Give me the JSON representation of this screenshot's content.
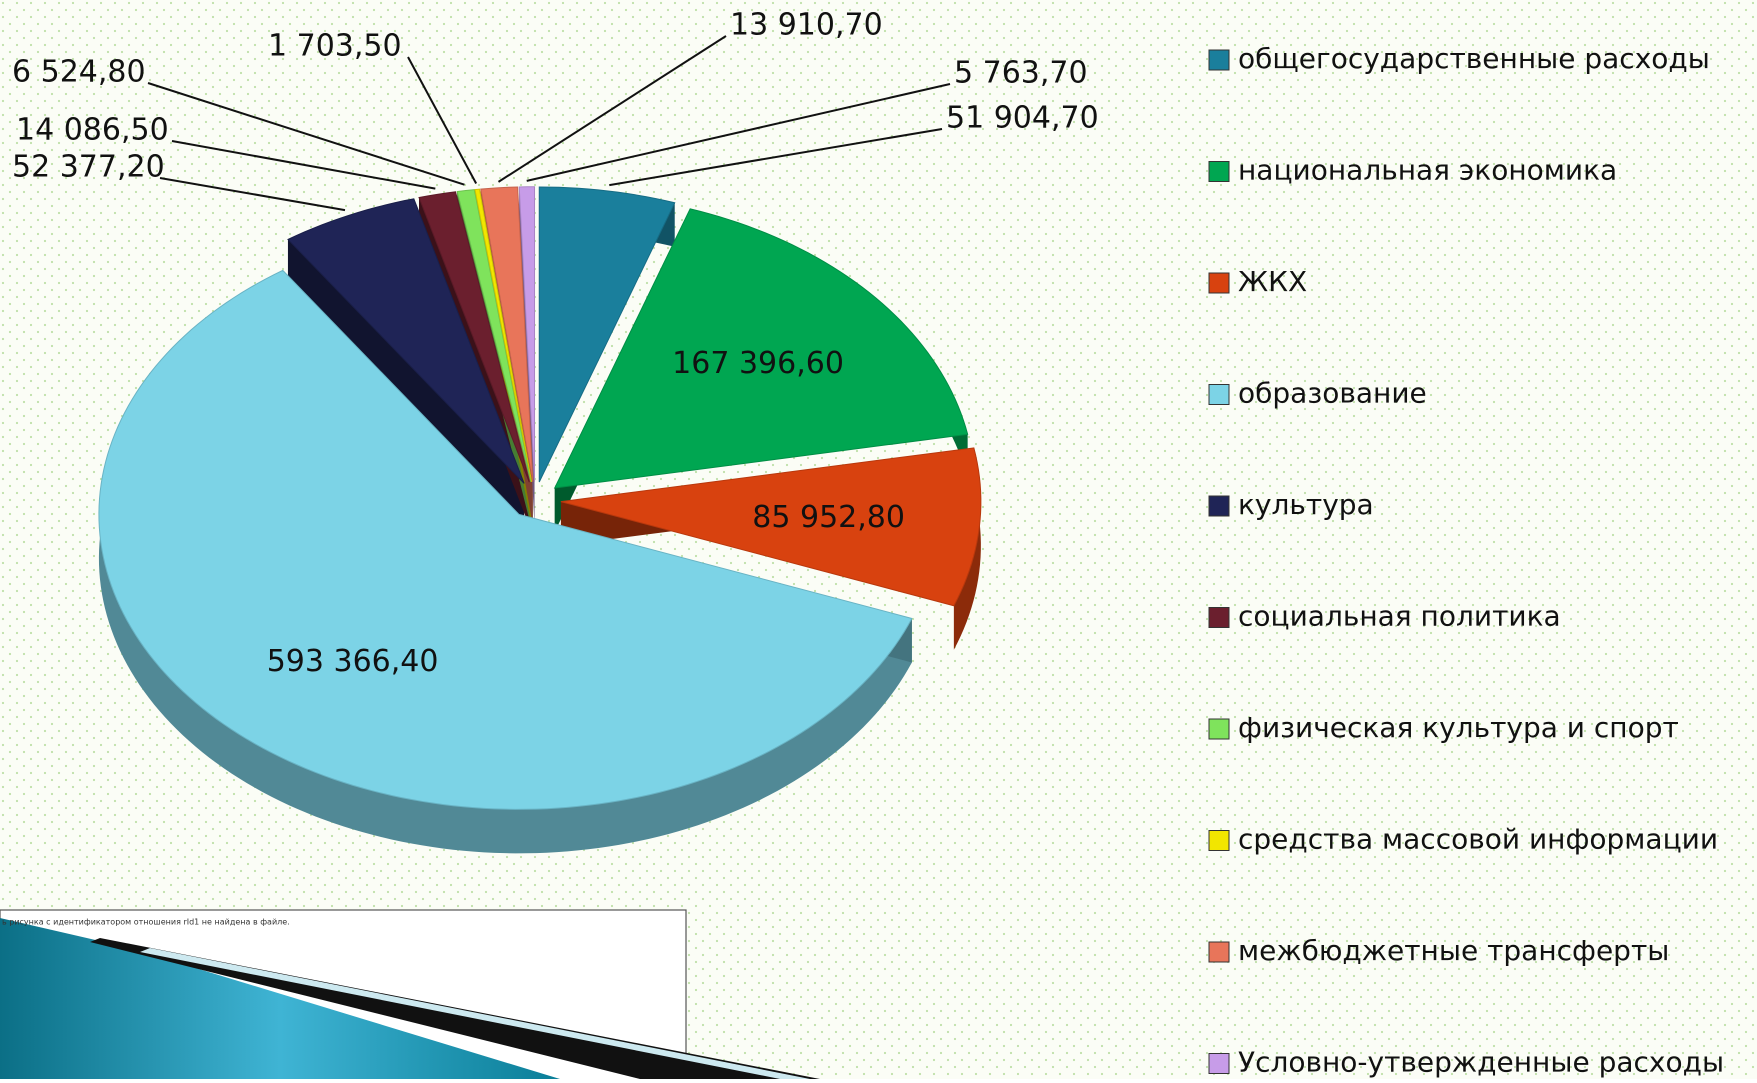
{
  "chart_data": {
    "type": "pie",
    "categories": [
      "общегосударственные расходы",
      "национальная экономика",
      "ЖКХ",
      "образование",
      "культура",
      "социальная политика",
      "физическая культура и спорт",
      "средства массовой информации",
      "межбюджетные трансферты",
      "Условно-утвержденные расходы"
    ],
    "values": [
      51904.7,
      167396.6,
      85952.8,
      593366.4,
      52377.2,
      14086.5,
      6524.8,
      1703.5,
      13910.7,
      5763.7
    ],
    "value_labels": [
      "51 904,70",
      "167 396,60",
      "85 952,80",
      "593 366,40",
      "52 377,20",
      "14 086,50",
      "6 524,80",
      "1 703,50",
      "13 910,70",
      "5 763,70"
    ],
    "colors": [
      "#1a7f9c",
      "#00a651",
      "#d8420f",
      "#7cd3e6",
      "#1f2456",
      "#6b1f2e",
      "#7fe35c",
      "#f2e600",
      "#e8755a",
      "#c79ce8"
    ],
    "legend": "right"
  },
  "placeholder": {
    "text": "ь рисунка с идентификатором отношения rId1 не найдена в файле."
  }
}
